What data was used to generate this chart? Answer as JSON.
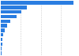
{
  "values": [
    490,
    175,
    140,
    105,
    65,
    45,
    28,
    18,
    12,
    9,
    6,
    4
  ],
  "bar_color": "#2a7de1",
  "background_color": "#ffffff",
  "grid_color": "#cccccc",
  "xmax": 520,
  "bar_height": 0.75,
  "n_bars": 12
}
